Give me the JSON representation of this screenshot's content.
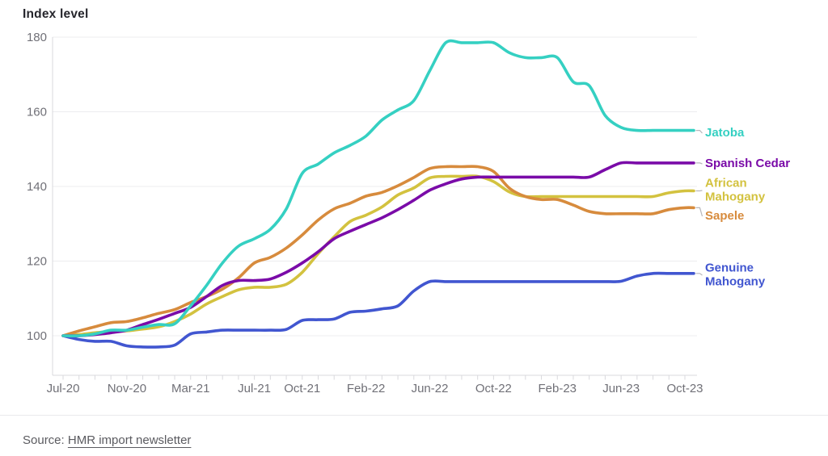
{
  "header": {
    "title": "Index level"
  },
  "source": {
    "prefix": "Source: ",
    "link_text": "HMR import newsletter"
  },
  "chart_data": {
    "type": "line",
    "title": "Index level",
    "xlabel": "",
    "ylabel": "Index level",
    "ylim": [
      89,
      182
    ],
    "grid": "horizontal",
    "legend_position": "right-of-lines",
    "y_ticks": [
      100,
      120,
      140,
      160,
      180
    ],
    "x": [
      "Jul-20",
      "Aug-20",
      "Sep-20",
      "Oct-20",
      "Nov-20",
      "Dec-20",
      "Jan-21",
      "Feb-21",
      "Mar-21",
      "Apr-21",
      "May-21",
      "Jun-21",
      "Jul-21",
      "Aug-21",
      "Sep-21",
      "Oct-21",
      "Nov-21",
      "Dec-21",
      "Jan-22",
      "Feb-22",
      "Mar-22",
      "Apr-22",
      "May-22",
      "Jun-22",
      "Jul-22",
      "Aug-22",
      "Sep-22",
      "Oct-22",
      "Nov-22",
      "Dec-22",
      "Jan-23",
      "Feb-23",
      "Mar-23",
      "Apr-23",
      "May-23",
      "Jun-23",
      "Jul-23",
      "Aug-23",
      "Sep-23",
      "Oct-23"
    ],
    "x_tick_labels": [
      "Jul-20",
      "Nov-20",
      "Mar-21",
      "Jul-21",
      "Oct-21",
      "Feb-22",
      "Jun-22",
      "Oct-22",
      "Feb-23",
      "Jun-23",
      "Oct-23"
    ],
    "x_tick_indices": [
      0,
      4,
      8,
      12,
      15,
      19,
      23,
      27,
      31,
      35,
      39
    ],
    "series": [
      {
        "name": "Jatoba",
        "legend_lines": [
          "Jatoba"
        ],
        "color": "#35d0c2",
        "values": [
          100,
          100,
          100.5,
          101.5,
          101.5,
          102.3,
          103,
          103.2,
          108,
          113.5,
          119.5,
          124,
          126,
          128.5,
          134,
          143.5,
          146,
          149,
          151,
          153.5,
          157.8,
          160.5,
          163,
          171,
          178.5,
          178.5,
          178.5,
          178.5,
          175.8,
          174.5,
          174.5,
          174.5,
          168,
          167,
          159,
          155.8,
          155,
          155,
          155,
          155
        ]
      },
      {
        "name": "Spanish Cedar",
        "legend_lines": [
          "Spanish Cedar"
        ],
        "color": "#7a0ba8",
        "values": [
          100,
          100,
          100.3,
          100.8,
          101.5,
          103,
          104.4,
          106,
          107.6,
          110.5,
          113.5,
          114.8,
          114.8,
          115.2,
          117,
          119.5,
          122.5,
          126,
          128,
          129.8,
          131.6,
          133.8,
          136.3,
          139,
          140.7,
          142,
          142.5,
          142.5,
          142.5,
          142.5,
          142.5,
          142.5,
          142.5,
          142.5,
          144.5,
          146.3,
          146.3,
          146.3,
          146.3,
          146.3
        ]
      },
      {
        "name": "African Mahogany",
        "legend_lines": [
          "African",
          "Mahogany"
        ],
        "color": "#d3c23f",
        "values": [
          100,
          100.3,
          100.8,
          101.1,
          101.3,
          101.8,
          102.4,
          103.8,
          105.8,
          108.5,
          110.5,
          112.3,
          113,
          113,
          113.8,
          117,
          122,
          126.5,
          130.6,
          132.3,
          134.5,
          137.7,
          139.6,
          142.3,
          142.7,
          142.7,
          142.7,
          141.3,
          138.5,
          137.3,
          137.3,
          137.3,
          137.3,
          137.3,
          137.3,
          137.3,
          137.3,
          137.3,
          138.3,
          138.8
        ]
      },
      {
        "name": "Sapele",
        "legend_lines": [
          "Sapele"
        ],
        "color": "#d78b3d",
        "values": [
          100,
          101.3,
          102.4,
          103.5,
          103.8,
          104.8,
          106,
          107,
          108.9,
          110.5,
          112.5,
          115.5,
          119.5,
          121,
          123.5,
          127,
          131,
          134,
          135.5,
          137.4,
          138.4,
          140.2,
          142.4,
          144.8,
          145.3,
          145.3,
          145.3,
          144,
          139.5,
          137.3,
          136.5,
          136.5,
          135,
          133.3,
          132.7,
          132.7,
          132.7,
          132.7,
          133.8,
          134.3
        ]
      },
      {
        "name": "Genuine Mahogany",
        "legend_lines": [
          "Genuine",
          "Mahogany"
        ],
        "color": "#4156d0",
        "values": [
          100,
          99,
          98.5,
          98.5,
          97.3,
          97,
          97,
          97.5,
          100.5,
          101,
          101.5,
          101.5,
          101.5,
          101.5,
          101.7,
          104.1,
          104.3,
          104.5,
          106.3,
          106.6,
          107.2,
          108,
          112,
          114.5,
          114.5,
          114.5,
          114.5,
          114.5,
          114.5,
          114.5,
          114.5,
          114.5,
          114.5,
          114.5,
          114.5,
          114.6,
          116,
          116.7,
          116.7,
          116.7
        ]
      }
    ]
  }
}
